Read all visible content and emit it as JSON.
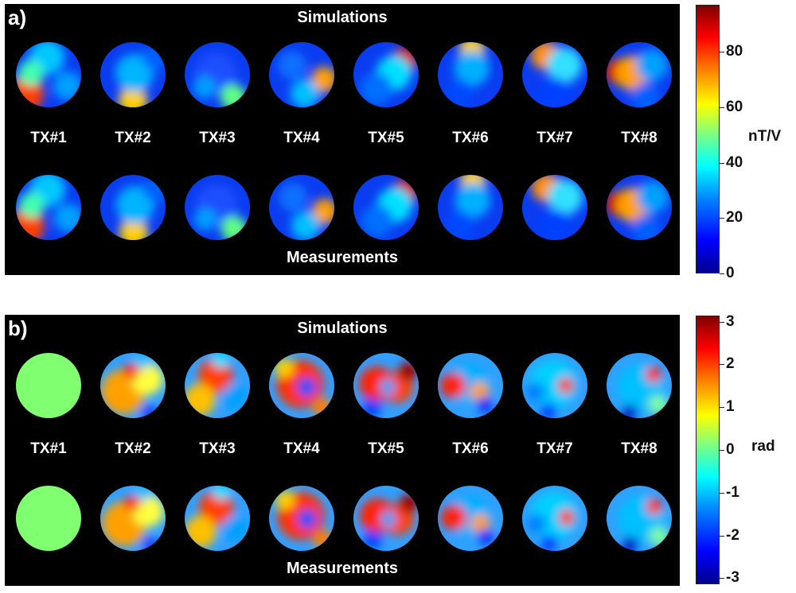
{
  "panels": [
    {
      "id": "a",
      "letter": "a)",
      "top_title": "Simulations",
      "bottom_title": "Measurements",
      "tx_labels": [
        "TX#1",
        "TX#2",
        "TX#3",
        "TX#4",
        "TX#5",
        "TX#6",
        "TX#7",
        "TX#8"
      ],
      "colorbar": {
        "unit": "nT/V",
        "range": [
          0,
          97
        ],
        "ticks": [
          {
            "value": 0,
            "label": "0"
          },
          {
            "value": 20,
            "label": "20"
          },
          {
            "value": 40,
            "label": "40"
          },
          {
            "value": 60,
            "label": "60"
          },
          {
            "value": 80,
            "label": "80"
          }
        ],
        "colormap": "jet"
      }
    },
    {
      "id": "b",
      "letter": "b)",
      "top_title": "Simulations",
      "bottom_title": "Measurements",
      "tx_labels": [
        "TX#1",
        "TX#2",
        "TX#3",
        "TX#4",
        "TX#5",
        "TX#6",
        "TX#7",
        "TX#8"
      ],
      "colorbar": {
        "unit": "rad",
        "range": [
          -3.14,
          3.14
        ],
        "ticks": [
          {
            "value": -3,
            "label": "-3"
          },
          {
            "value": -2,
            "label": "-2"
          },
          {
            "value": -1,
            "label": "-1"
          },
          {
            "value": 0,
            "label": "0"
          },
          {
            "value": 1,
            "label": "1"
          },
          {
            "value": 2,
            "label": "2"
          },
          {
            "value": 3,
            "label": "3"
          }
        ],
        "colormap": "jet"
      }
    }
  ]
}
